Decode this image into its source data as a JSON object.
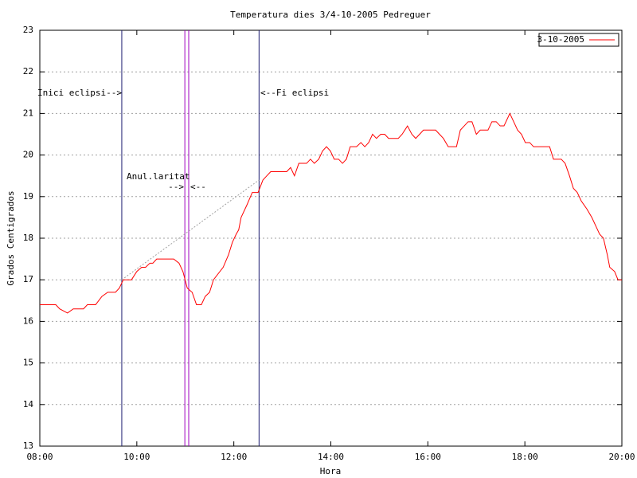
{
  "chart_data": {
    "type": "line",
    "title": "Temperatura dies 3/4-10-2005 Pedreguer",
    "xlabel": "Hora",
    "ylabel": "Grados Centigrados",
    "xlim": [
      8,
      20
    ],
    "xticks": [
      {
        "value": 8,
        "label": "08:00"
      },
      {
        "value": 10,
        "label": "10:00"
      },
      {
        "value": 12,
        "label": "12:00"
      },
      {
        "value": 14,
        "label": "14:00"
      },
      {
        "value": 16,
        "label": "16:00"
      },
      {
        "value": 18,
        "label": "18:00"
      },
      {
        "value": 20,
        "label": "20:00"
      }
    ],
    "ylim": [
      13,
      23
    ],
    "yticks": [
      13,
      14,
      15,
      16,
      17,
      18,
      19,
      20,
      21,
      22,
      23
    ],
    "grid": true,
    "legend": "top-right",
    "series": [
      {
        "name": "3-10-2005",
        "color": "#ff0000",
        "x": [
          8.0,
          8.33,
          8.41,
          8.57,
          8.69,
          8.9,
          8.98,
          9.15,
          9.28,
          9.4,
          9.56,
          9.64,
          9.72,
          9.89,
          10.0,
          10.1,
          10.18,
          10.27,
          10.33,
          10.41,
          10.76,
          10.87,
          10.95,
          11.04,
          11.14,
          11.23,
          11.33,
          11.41,
          11.5,
          11.58,
          11.78,
          11.89,
          11.97,
          12.05,
          12.1,
          12.15,
          12.27,
          12.38,
          12.5,
          12.6,
          12.68,
          12.76,
          13.09,
          13.17,
          13.25,
          13.34,
          13.5,
          13.58,
          13.66,
          13.75,
          13.83,
          13.91,
          13.99,
          14.07,
          14.16,
          14.24,
          14.32,
          14.4,
          14.53,
          14.62,
          14.7,
          14.78,
          14.86,
          14.94,
          15.03,
          15.11,
          15.19,
          15.39,
          15.47,
          15.58,
          15.67,
          15.75,
          15.83,
          15.91,
          16.16,
          16.24,
          16.32,
          16.42,
          16.59,
          16.67,
          16.75,
          16.83,
          16.91,
          17.0,
          17.08,
          17.24,
          17.32,
          17.41,
          17.49,
          17.57,
          17.69,
          17.77,
          17.85,
          17.93,
          18.01,
          18.1,
          18.18,
          18.51,
          18.59,
          18.75,
          18.83,
          18.92,
          19.0,
          19.08,
          19.16,
          19.28,
          19.38,
          19.46,
          19.54,
          19.62,
          19.7,
          19.75,
          19.85,
          19.92,
          20.0
        ],
        "values": [
          16.4,
          16.4,
          16.3,
          16.2,
          16.3,
          16.3,
          16.4,
          16.4,
          16.6,
          16.7,
          16.7,
          16.8,
          17.0,
          17.0,
          17.2,
          17.3,
          17.3,
          17.4,
          17.4,
          17.5,
          17.5,
          17.4,
          17.2,
          16.8,
          16.7,
          16.4,
          16.4,
          16.6,
          16.7,
          17.0,
          17.3,
          17.6,
          17.9,
          18.1,
          18.2,
          18.5,
          18.8,
          19.1,
          19.1,
          19.4,
          19.5,
          19.6,
          19.6,
          19.7,
          19.5,
          19.8,
          19.8,
          19.9,
          19.8,
          19.9,
          20.1,
          20.2,
          20.1,
          19.9,
          19.9,
          19.8,
          19.9,
          20.2,
          20.2,
          20.3,
          20.2,
          20.3,
          20.5,
          20.4,
          20.5,
          20.5,
          20.4,
          20.4,
          20.5,
          20.7,
          20.5,
          20.4,
          20.5,
          20.6,
          20.6,
          20.5,
          20.4,
          20.2,
          20.2,
          20.6,
          20.7,
          20.8,
          20.8,
          20.5,
          20.6,
          20.6,
          20.8,
          20.8,
          20.7,
          20.7,
          21.0,
          20.8,
          20.6,
          20.5,
          20.3,
          20.3,
          20.2,
          20.2,
          19.9,
          19.9,
          19.8,
          19.5,
          19.2,
          19.1,
          18.9,
          18.7,
          18.5,
          18.3,
          18.1,
          18.0,
          17.6,
          17.3,
          17.2,
          17.0,
          17.0
        ]
      }
    ],
    "reference_line": {
      "x": [
        9.69,
        12.52
      ],
      "values": [
        17.0,
        19.4
      ],
      "color": "#a0a0a0"
    },
    "markers": [
      {
        "x": 9.69,
        "color": "#1c1c70"
      },
      {
        "x": 10.99,
        "color": "#a000c0"
      },
      {
        "x": 11.07,
        "color": "#a000c0"
      },
      {
        "x": 12.52,
        "color": "#1c1c70"
      }
    ],
    "annotations": [
      "Inici eclipsi-->",
      "<--Fi eclipsi",
      "Anul.laritat",
      "-->",
      "<--"
    ]
  }
}
